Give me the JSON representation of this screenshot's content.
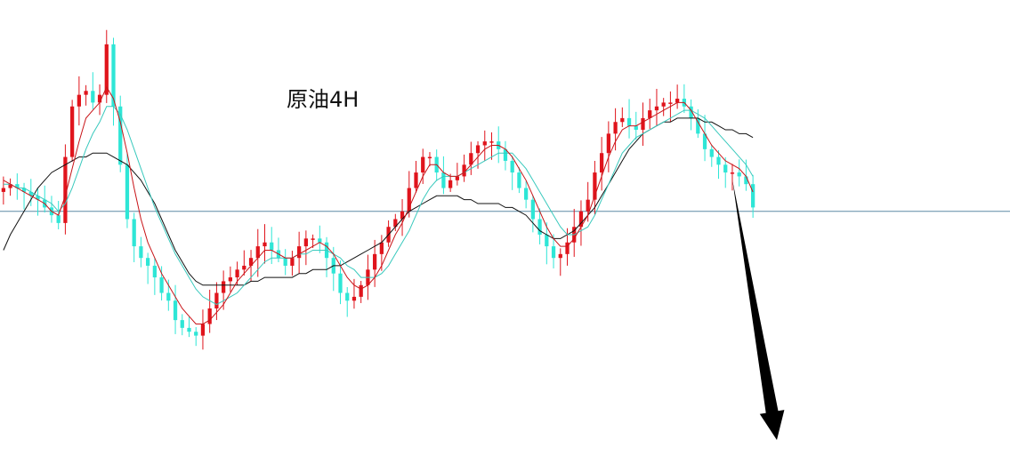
{
  "chart_data": {
    "type": "candlestick",
    "title": "原油4H",
    "xlabel": "",
    "ylabel": "",
    "ylim": [
      0,
      100
    ],
    "grid": false,
    "legend": "none",
    "colors": {
      "up": "#e0141c",
      "down": "#2ee6d6",
      "ma_fast": "#c81418",
      "ma_mid": "#39c9bd",
      "ma_slow": "#111111",
      "reference_line": "#5f8aa6",
      "arrow": "#000000"
    },
    "reference_level": 52.0,
    "closes": [
      58,
      59,
      58,
      57,
      56,
      55,
      53,
      51,
      49,
      66,
      79,
      82,
      83,
      80,
      82,
      95,
      79,
      64,
      50,
      43,
      40,
      38,
      35,
      31,
      29,
      24,
      22,
      21,
      20,
      23,
      27,
      31,
      34,
      35,
      37,
      38,
      40,
      43,
      44,
      42,
      40,
      38,
      40,
      43,
      45,
      45,
      44,
      40,
      36,
      31,
      29,
      30,
      33,
      37,
      41,
      44,
      48,
      50,
      52,
      58,
      62,
      66,
      66,
      62,
      58,
      60,
      61,
      64,
      67,
      69,
      70,
      70,
      68,
      65,
      62,
      58,
      55,
      50,
      46,
      43,
      40,
      41,
      44,
      48,
      52,
      55,
      62,
      67,
      72,
      75,
      76,
      74,
      73,
      76,
      78,
      79,
      80,
      80,
      81,
      79,
      76,
      72,
      68,
      66,
      64,
      62,
      62,
      61,
      59,
      53
    ],
    "ma_fast": [
      60,
      59,
      58,
      57,
      56,
      55,
      54,
      52,
      51,
      56,
      63,
      70,
      76,
      78,
      80,
      84,
      81,
      75,
      67,
      58,
      50,
      44,
      40,
      36,
      33,
      30,
      27,
      25,
      23,
      23,
      24,
      26,
      28,
      31,
      34,
      36,
      38,
      40,
      42,
      42,
      41,
      40,
      40,
      41,
      42,
      43,
      44,
      43,
      41,
      38,
      35,
      33,
      32,
      33,
      35,
      38,
      42,
      46,
      49,
      53,
      57,
      61,
      64,
      64,
      62,
      61,
      61,
      62,
      64,
      66,
      68,
      69,
      69,
      68,
      66,
      63,
      60,
      56,
      52,
      48,
      45,
      43,
      43,
      45,
      48,
      51,
      56,
      61,
      66,
      70,
      73,
      74,
      74,
      75,
      76,
      77,
      78,
      79,
      80,
      80,
      78,
      75,
      72,
      69,
      67,
      65,
      64,
      63,
      61,
      57
    ],
    "ma_mid": [
      59,
      59,
      58,
      58,
      57,
      56,
      55,
      54,
      52,
      54,
      58,
      63,
      68,
      72,
      75,
      79,
      79,
      77,
      73,
      68,
      63,
      58,
      53,
      49,
      45,
      41,
      38,
      35,
      32,
      30,
      29,
      28,
      29,
      30,
      31,
      33,
      35,
      37,
      39,
      40,
      40,
      40,
      40,
      41,
      41,
      42,
      42,
      42,
      41,
      40,
      38,
      37,
      35,
      35,
      35,
      36,
      38,
      41,
      44,
      47,
      51,
      55,
      58,
      60,
      61,
      61,
      61,
      62,
      63,
      64,
      65,
      66,
      67,
      67,
      67,
      65,
      63,
      60,
      57,
      54,
      51,
      48,
      46,
      46,
      47,
      48,
      51,
      55,
      59,
      63,
      67,
      69,
      71,
      72,
      73,
      74,
      75,
      76,
      77,
      78,
      78,
      77,
      76,
      74,
      72,
      70,
      68,
      66,
      64,
      61
    ],
    "ma_slow": [
      42,
      46,
      49,
      52,
      55,
      58,
      60,
      62,
      63,
      64,
      65,
      66,
      66,
      67,
      67,
      67,
      66,
      65,
      64,
      62,
      60,
      57,
      54,
      50,
      46,
      42,
      39,
      36,
      34,
      33,
      33,
      33,
      33,
      33,
      33,
      33,
      34,
      34,
      35,
      35,
      35,
      35,
      35,
      36,
      36,
      37,
      37,
      37,
      38,
      38,
      39,
      40,
      41,
      42,
      43,
      44,
      46,
      48,
      50,
      52,
      53,
      54,
      55,
      56,
      56,
      56,
      56,
      55,
      55,
      54,
      54,
      54,
      54,
      53,
      53,
      52,
      51,
      49,
      47,
      46,
      45,
      45,
      46,
      47,
      49,
      51,
      53,
      56,
      59,
      62,
      65,
      68,
      70,
      72,
      73,
      74,
      75,
      75,
      76,
      76,
      76,
      76,
      75,
      75,
      74,
      73,
      73,
      72,
      72,
      71
    ]
  }
}
